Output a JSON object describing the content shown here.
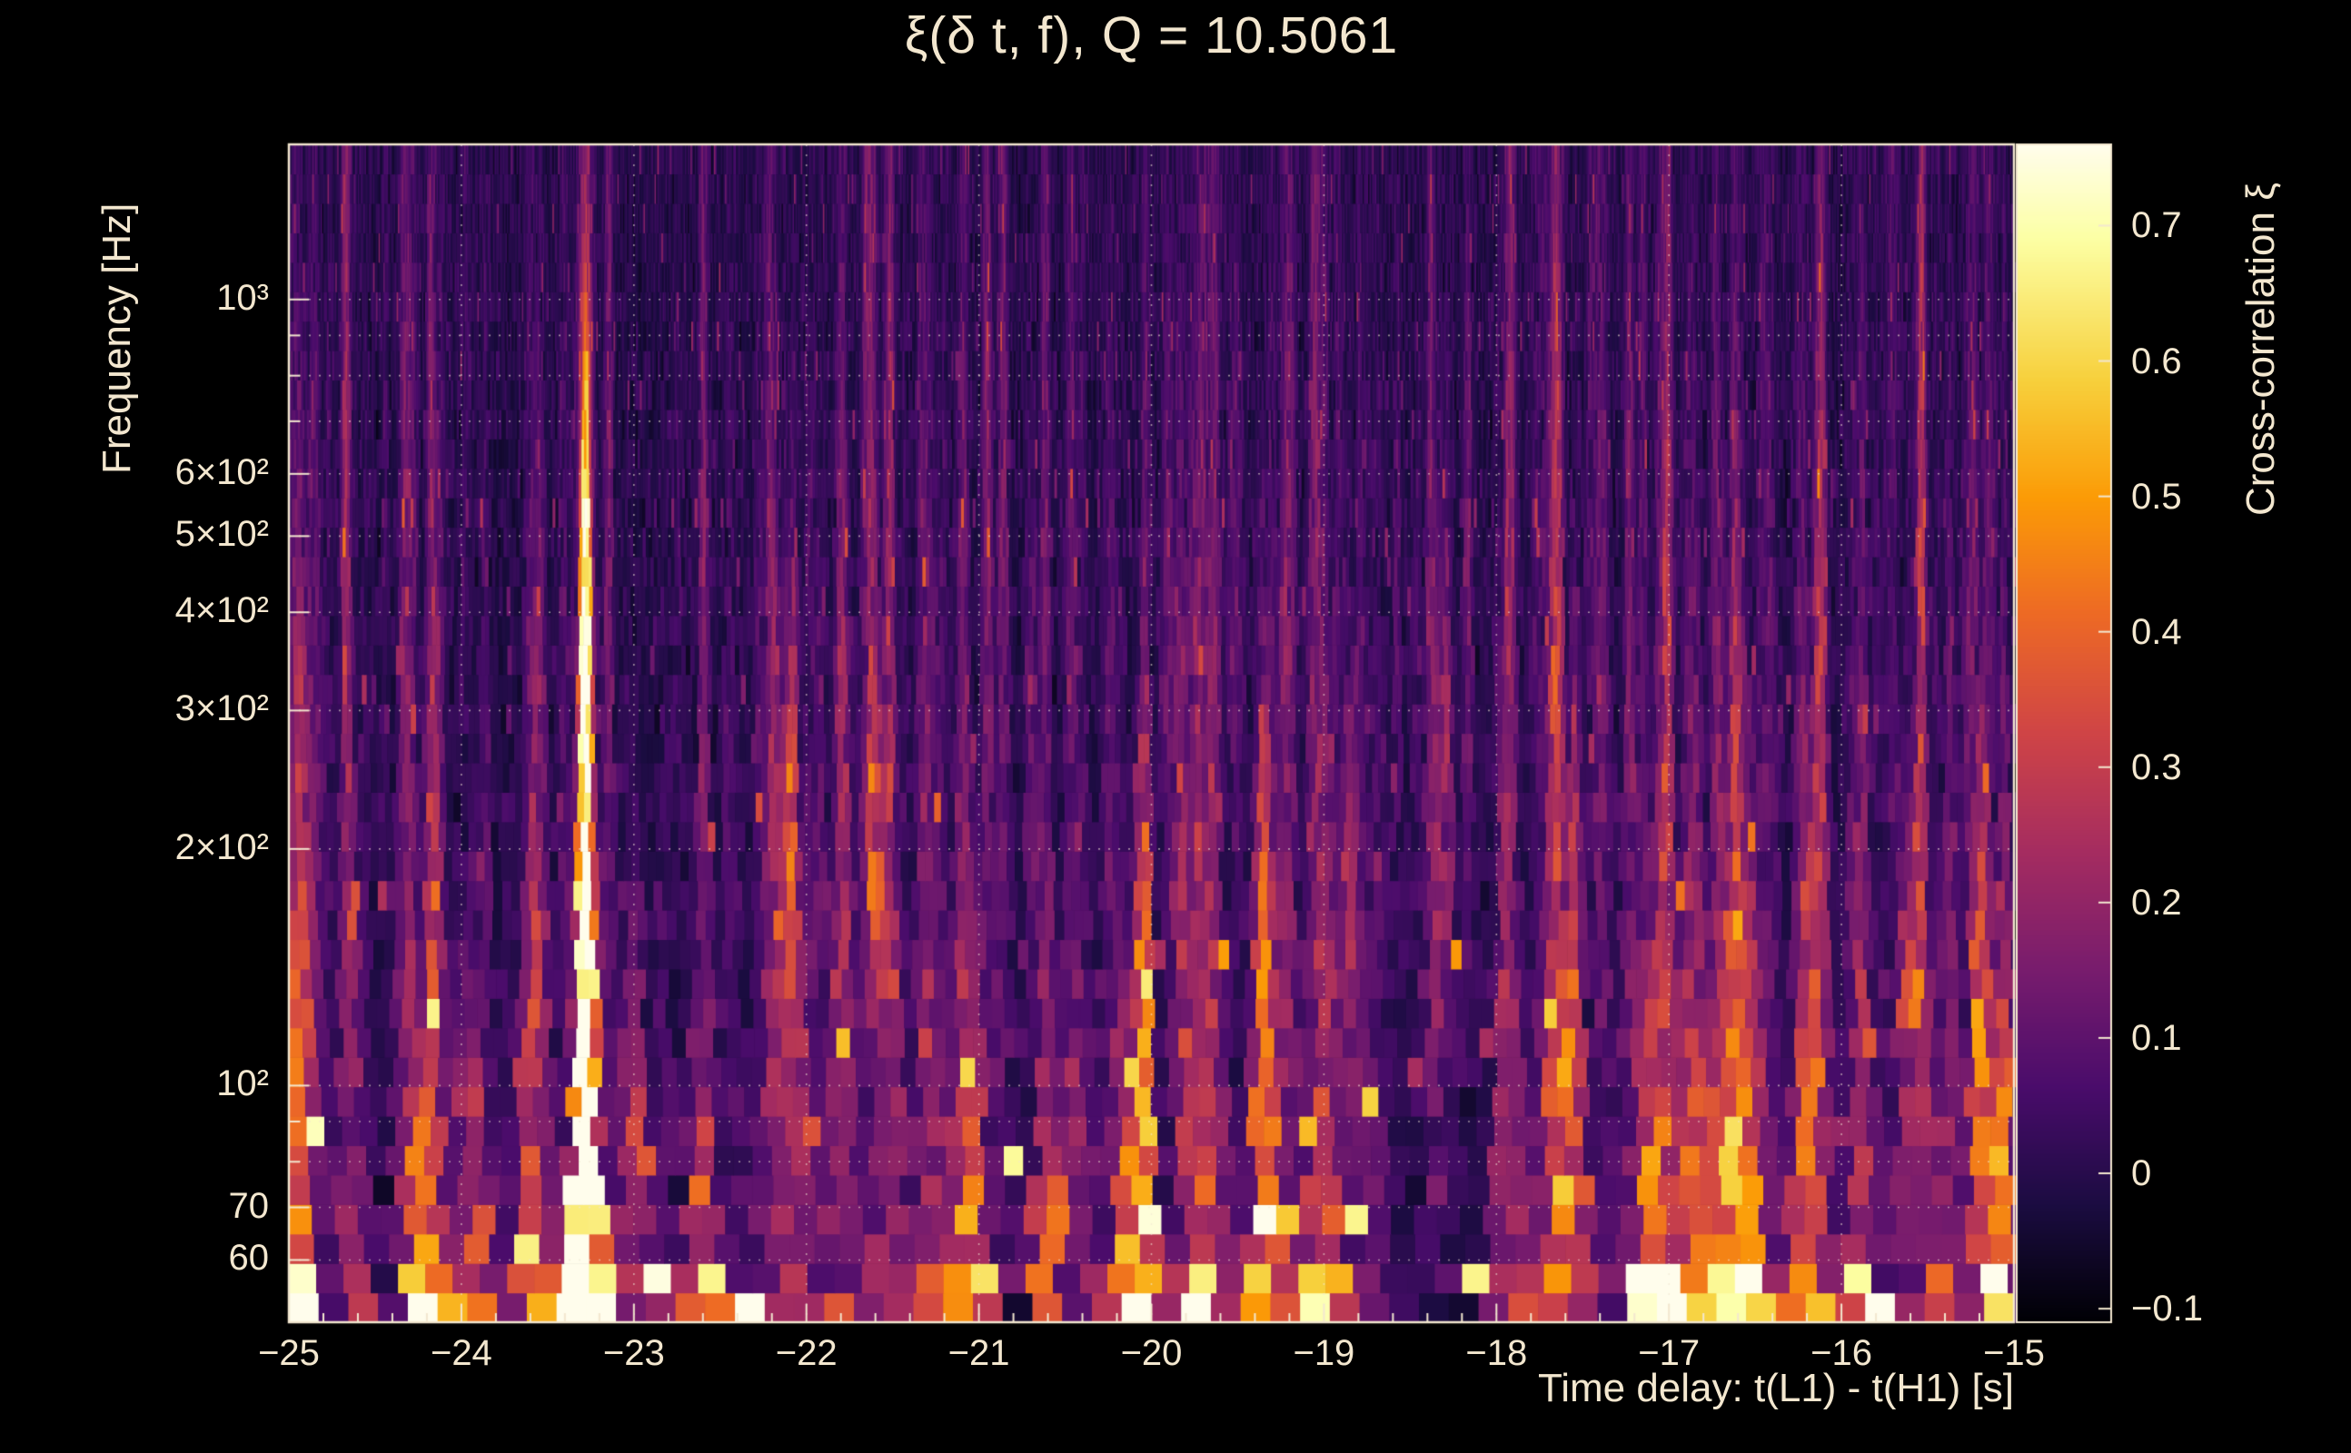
{
  "page": {
    "background": "#000000",
    "text_color": "#f3e7cf",
    "grid_color": "rgba(242,232,212,0.6)"
  },
  "chart_data": {
    "type": "heatmap",
    "title": "ξ(δ t, f), Q = 10.5061",
    "q_value": 10.5061,
    "xlabel": "Time delay: t(L1) - t(H1) [s]",
    "ylabel": "Frequency [Hz]",
    "colorbar_label": "Cross-correlation ξ",
    "x_range": [
      -25,
      -15
    ],
    "x_ticks": [
      {
        "value": -25,
        "label": "−25"
      },
      {
        "value": -24,
        "label": "−24"
      },
      {
        "value": -23,
        "label": "−23"
      },
      {
        "value": -22,
        "label": "−22"
      },
      {
        "value": -21,
        "label": "−21"
      },
      {
        "value": -20,
        "label": "−20"
      },
      {
        "value": -19,
        "label": "−19"
      },
      {
        "value": -18,
        "label": "−18"
      },
      {
        "value": -17,
        "label": "−17"
      },
      {
        "value": -16,
        "label": "−16"
      },
      {
        "value": -15,
        "label": "−15"
      }
    ],
    "x_minor_tick_step": 0.2,
    "y_scale": "log",
    "y_range_hz": [
      50,
      1575
    ],
    "y_ticks": [
      {
        "value": 1000,
        "label": "10³"
      },
      {
        "value": 600,
        "label": "6×10²"
      },
      {
        "value": 500,
        "label": "5×10²"
      },
      {
        "value": 400,
        "label": "4×10²"
      },
      {
        "value": 300,
        "label": "3×10²"
      },
      {
        "value": 200,
        "label": "2×10²"
      },
      {
        "value": 100,
        "label": "10²"
      },
      {
        "value": 70,
        "label": "70"
      },
      {
        "value": 60,
        "label": "60"
      }
    ],
    "y_gridlines_hz": [
      60,
      70,
      80,
      90,
      100,
      200,
      300,
      400,
      500,
      600,
      700,
      800,
      900,
      1000
    ],
    "z_range": [
      -0.11,
      0.76
    ],
    "colorbar_ticks": [
      {
        "value": 0.7,
        "label": "0.7"
      },
      {
        "value": 0.6,
        "label": "0.6"
      },
      {
        "value": 0.5,
        "label": "0.5"
      },
      {
        "value": 0.4,
        "label": "0.4"
      },
      {
        "value": 0.3,
        "label": "0.3"
      },
      {
        "value": 0.2,
        "label": "0.2"
      },
      {
        "value": 0.1,
        "label": "0.1"
      },
      {
        "value": 0.0,
        "label": "0"
      },
      {
        "value": -0.1,
        "label": "−0.1"
      }
    ],
    "colormap": {
      "name": "inferno",
      "anchors": [
        [
          0.0,
          "#000004"
        ],
        [
          0.1,
          "#1b0c41"
        ],
        [
          0.2,
          "#4a0c6b"
        ],
        [
          0.3,
          "#781c6d"
        ],
        [
          0.4,
          "#a52c60"
        ],
        [
          0.5,
          "#cf4446"
        ],
        [
          0.6,
          "#ed6925"
        ],
        [
          0.7,
          "#fb9b06"
        ],
        [
          0.8,
          "#f7d03c"
        ],
        [
          0.92,
          "#fcffa4"
        ],
        [
          1.0,
          "#fffdec"
        ]
      ]
    },
    "features": {
      "main_streak": {
        "time_delay_s": -23.28,
        "center_freq_hz": 140,
        "amplitude": 0.95,
        "time_width_s": 0.018,
        "log_freq_sigma": 1.35,
        "freq_extent_hz": [
          52,
          950
        ]
      },
      "secondary_streaks": [
        [
          -24.25,
          72,
          0.34
        ],
        [
          -23.95,
          65,
          0.26
        ],
        [
          -23.0,
          85,
          0.3
        ],
        [
          -22.62,
          60,
          0.28
        ],
        [
          -22.1,
          190,
          0.33
        ],
        [
          -21.6,
          210,
          0.32
        ],
        [
          -21.05,
          75,
          0.3
        ],
        [
          -20.6,
          65,
          0.27
        ],
        [
          -20.15,
          57,
          0.3
        ],
        [
          -20.05,
          95,
          0.42
        ],
        [
          -19.35,
          135,
          0.4
        ],
        [
          -19.0,
          60,
          0.28
        ],
        [
          -18.85,
          175,
          0.3
        ],
        [
          -18.3,
          250,
          0.25
        ],
        [
          -17.55,
          110,
          0.3
        ],
        [
          -17.1,
          65,
          0.34
        ],
        [
          -16.55,
          90,
          0.38
        ],
        [
          -16.2,
          70,
          0.33
        ],
        [
          -15.6,
          130,
          0.28
        ],
        [
          -15.2,
          110,
          0.34
        ],
        [
          -15.05,
          80,
          0.3
        ]
      ],
      "noise": {
        "seed": 7,
        "rows": 40,
        "weak_streak_count": 170,
        "base_sigma": 0.028,
        "pop_probability": 0.055,
        "low_freq_boost_center_hz": 85,
        "description": "vertical streak noise on dark-purple background, denser and blockier below ~130 Hz, fine hair streaks at high frequency"
      }
    }
  }
}
